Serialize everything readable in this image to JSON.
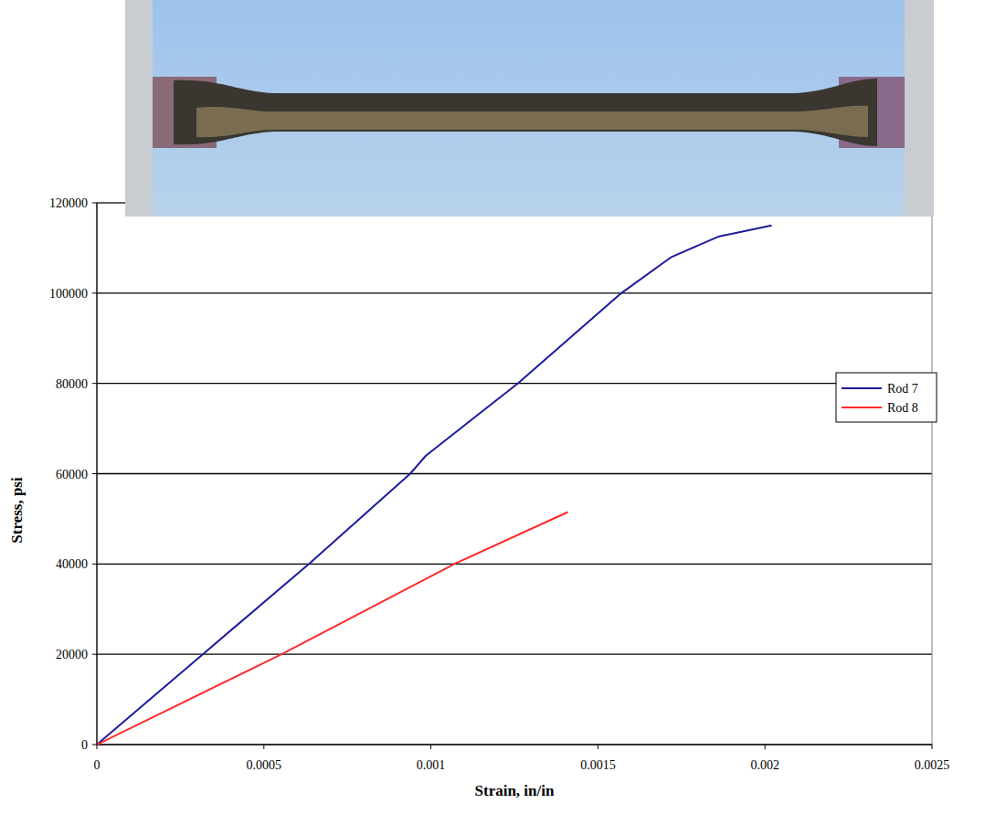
{
  "chart_data": {
    "type": "line",
    "x_label": "Strain, in/in",
    "y_label": "Stress, psi",
    "xlim": [
      0,
      0.0025
    ],
    "xticks": [
      0,
      0.0005,
      0.001,
      0.0015,
      0.002,
      0.0025
    ],
    "ylim": [
      0,
      120000
    ],
    "yticks": [
      0,
      20000,
      40000,
      60000,
      80000,
      100000,
      120000
    ],
    "grid": true,
    "legend": "right",
    "series": [
      {
        "name": "Rod 7",
        "color": "#1c1c9c",
        "x": [
          0,
          0.000317,
          0.000635,
          0.000938,
          0.000985,
          0.00126,
          0.00157,
          0.00172,
          0.00186,
          0.00202
        ],
        "values": [
          0,
          20000,
          40000,
          60000,
          64000,
          80000,
          100000,
          108000,
          112500,
          115000
        ]
      },
      {
        "name": "Rod 8",
        "color": "#ff2a2a",
        "x": [
          0,
          0.000553,
          0.00107,
          0.00141
        ],
        "values": [
          0,
          20000,
          40000,
          51500
        ]
      }
    ]
  }
}
